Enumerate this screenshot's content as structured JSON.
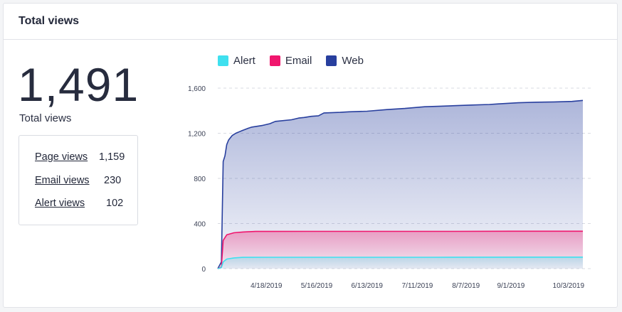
{
  "header": {
    "title": "Total views"
  },
  "summary": {
    "total": "1,491",
    "total_label": "Total views",
    "rows": [
      {
        "label": "Page views",
        "value": "1,159"
      },
      {
        "label": "Email views",
        "value": "230"
      },
      {
        "label": "Alert views",
        "value": "102"
      }
    ]
  },
  "colors": {
    "alert": "#3fe0ef",
    "email": "#f0166d",
    "web": "#283f9e"
  },
  "chart_data": {
    "type": "area",
    "stacked": true,
    "legend": [
      "Alert",
      "Email",
      "Web"
    ],
    "legend_position": "top",
    "ylim": [
      0,
      1600
    ],
    "yticks": [
      0,
      400,
      800,
      1200,
      1600
    ],
    "ytick_labels": [
      "0",
      "400",
      "800",
      "1,200",
      "1,600"
    ],
    "xtick_labels": [
      "4/18/2019",
      "5/16/2019",
      "6/13/2019",
      "7/11/2019",
      "8/7/2019",
      "9/1/2019",
      "10/3/2019"
    ],
    "xtick_dates": [
      "2019-04-18",
      "2019-05-16",
      "2019-06-13",
      "2019-07-11",
      "2019-08-07",
      "2019-09-01",
      "2019-10-03"
    ],
    "x_range": [
      "2019-03-22",
      "2019-10-11"
    ],
    "grid": true,
    "series": [
      {
        "name": "Alert",
        "x": [
          "2019-03-22",
          "2019-03-24",
          "2019-03-25",
          "2019-03-27",
          "2019-03-31",
          "2019-04-05",
          "2019-04-20",
          "2019-06-01",
          "2019-07-20",
          "2019-09-10",
          "2019-10-11"
        ],
        "y": [
          0,
          10,
          60,
          85,
          95,
          100,
          101,
          101,
          101,
          102,
          102
        ]
      },
      {
        "name": "Email",
        "x": [
          "2019-03-22",
          "2019-03-24",
          "2019-03-25",
          "2019-03-27",
          "2019-03-31",
          "2019-04-05",
          "2019-04-12",
          "2019-05-10",
          "2019-08-01",
          "2019-09-01",
          "2019-10-11"
        ],
        "y": [
          0,
          15,
          250,
          300,
          318,
          325,
          330,
          331,
          331,
          332,
          332
        ]
      },
      {
        "name": "Web",
        "x": [
          "2019-03-22",
          "2019-03-24",
          "2019-03-25",
          "2019-03-26",
          "2019-03-27",
          "2019-03-28",
          "2019-03-30",
          "2019-04-01",
          "2019-04-04",
          "2019-04-08",
          "2019-04-10",
          "2019-04-16",
          "2019-04-20",
          "2019-04-23",
          "2019-05-02",
          "2019-05-06",
          "2019-05-09",
          "2019-05-13",
          "2019-05-17",
          "2019-05-20",
          "2019-05-29",
          "2019-06-03",
          "2019-06-13",
          "2019-06-24",
          "2019-07-04",
          "2019-07-15",
          "2019-07-24",
          "2019-08-10",
          "2019-08-20",
          "2019-08-25",
          "2019-09-05",
          "2019-09-15",
          "2019-09-25",
          "2019-10-05",
          "2019-10-11"
        ],
        "y": [
          0,
          60,
          950,
          1000,
          1100,
          1140,
          1180,
          1200,
          1220,
          1245,
          1255,
          1270,
          1285,
          1305,
          1320,
          1335,
          1340,
          1350,
          1355,
          1380,
          1385,
          1390,
          1395,
          1410,
          1420,
          1435,
          1440,
          1450,
          1455,
          1460,
          1470,
          1475,
          1478,
          1482,
          1491
        ]
      }
    ]
  }
}
